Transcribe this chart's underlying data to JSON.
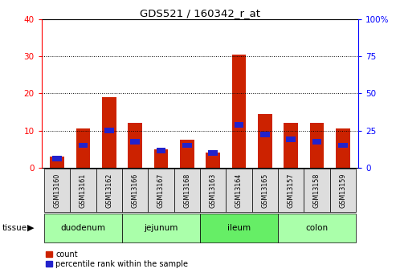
{
  "title": "GDS521 / 160342_r_at",
  "samples": [
    "GSM13160",
    "GSM13161",
    "GSM13162",
    "GSM13166",
    "GSM13167",
    "GSM13168",
    "GSM13163",
    "GSM13164",
    "GSM13165",
    "GSM13157",
    "GSM13158",
    "GSM13159"
  ],
  "count_values": [
    3.0,
    10.5,
    19.0,
    12.0,
    5.0,
    7.5,
    4.0,
    30.5,
    14.5,
    12.0,
    12.0,
    10.5
  ],
  "percentile_values": [
    6.0,
    15.0,
    25.0,
    17.5,
    11.5,
    15.0,
    10.0,
    29.0,
    22.5,
    19.0,
    17.5,
    15.0
  ],
  "tissues": [
    {
      "label": "duodenum",
      "start": 0,
      "end": 3,
      "color": "#aaffaa"
    },
    {
      "label": "jejunum",
      "start": 3,
      "end": 6,
      "color": "#aaffaa"
    },
    {
      "label": "ileum",
      "start": 6,
      "end": 9,
      "color": "#66ee66"
    },
    {
      "label": "colon",
      "start": 9,
      "end": 12,
      "color": "#aaffaa"
    }
  ],
  "bar_width": 0.55,
  "count_color": "#cc2200",
  "percentile_color": "#2222cc",
  "left_ylim": [
    0,
    40
  ],
  "right_ylim": [
    0,
    100
  ],
  "left_yticks": [
    0,
    10,
    20,
    30,
    40
  ],
  "right_yticks": [
    0,
    25,
    50,
    75,
    100
  ],
  "sample_box_color": "#dddddd",
  "pct_bar_height": 1.5
}
